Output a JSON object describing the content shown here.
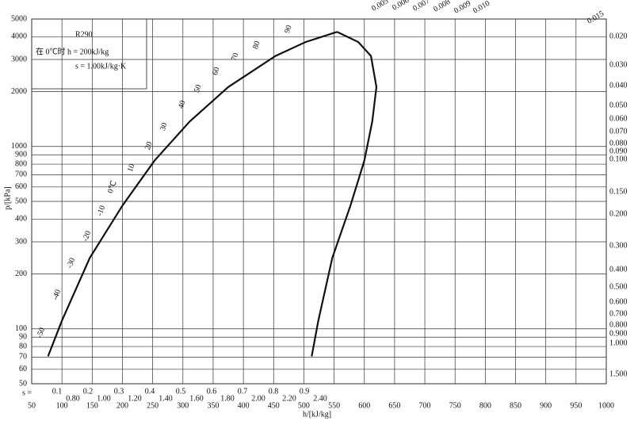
{
  "chart_data": {
    "type": "line",
    "title": "R290",
    "header_lines": [
      "在 0℃时 h = 200kJ/kg",
      "s = 1.00kJ/kg·K"
    ],
    "x_label": "h/[kJ/kg]",
    "y_label": "p/[kPa]",
    "xlim": [
      50,
      1000
    ],
    "xticks": [
      50,
      100,
      150,
      200,
      250,
      300,
      350,
      400,
      450,
      500,
      550,
      600,
      650,
      700,
      750,
      800,
      850,
      900,
      950,
      1000
    ],
    "ylim": [
      50,
      5000
    ],
    "yticks": [
      50,
      60,
      70,
      80,
      90,
      100,
      200,
      300,
      400,
      500,
      600,
      700,
      800,
      900,
      1000,
      2000,
      3000,
      4000,
      5000
    ],
    "log_y": true,
    "grid": true,
    "series": [
      {
        "color": "#111111",
        "x": [
          77,
          100,
          146,
          200,
          253,
          311,
          375,
          453,
          503,
          555
        ],
        "values": [
          70.7,
          111,
          245,
          474,
          836,
          1369,
          2117,
          3135,
          3740,
          4250
        ]
      },
      {
        "color": "#111111",
        "x": [
          555,
          590,
          611,
          620,
          613,
          600,
          577,
          547,
          524,
          513
        ],
        "values": [
          4250,
          3740,
          3135,
          2117,
          1369,
          836,
          474,
          245,
          111,
          70.7
        ]
      }
    ],
    "isotherm_labels": [
      "-50",
      "-40",
      "-30",
      "-20",
      "-10",
      "0℃",
      "10",
      "20",
      "30",
      "40",
      "50",
      "60",
      "70",
      "80",
      "90"
    ],
    "volume_labels_top": [
      "0.005",
      "0.006",
      "0.007",
      "0.008",
      "0.009",
      "0.010",
      "0.015"
    ],
    "volume_labels_right": [
      "0.020",
      "0.030",
      "0.040",
      "0.050",
      "0.060",
      "0.070",
      "0.080",
      "0.090",
      "0.100",
      "0.150",
      "0.200",
      "0.300",
      "0.400",
      "0.500",
      "0.600",
      "0.700",
      "0.800",
      "0.900",
      "1.000",
      "1.500"
    ],
    "entropy_prefix": "s =",
    "entropy_row_1": [
      "0.1",
      "0.2",
      "0.3",
      "0.4",
      "0.5",
      "0.6",
      "0.7",
      "0.8",
      "0.9"
    ],
    "entropy_row_2": [
      "0.80",
      "1.00",
      "1.20",
      "1.40",
      "1.60",
      "1.80",
      "2.00",
      "2.20",
      "2.40"
    ]
  }
}
